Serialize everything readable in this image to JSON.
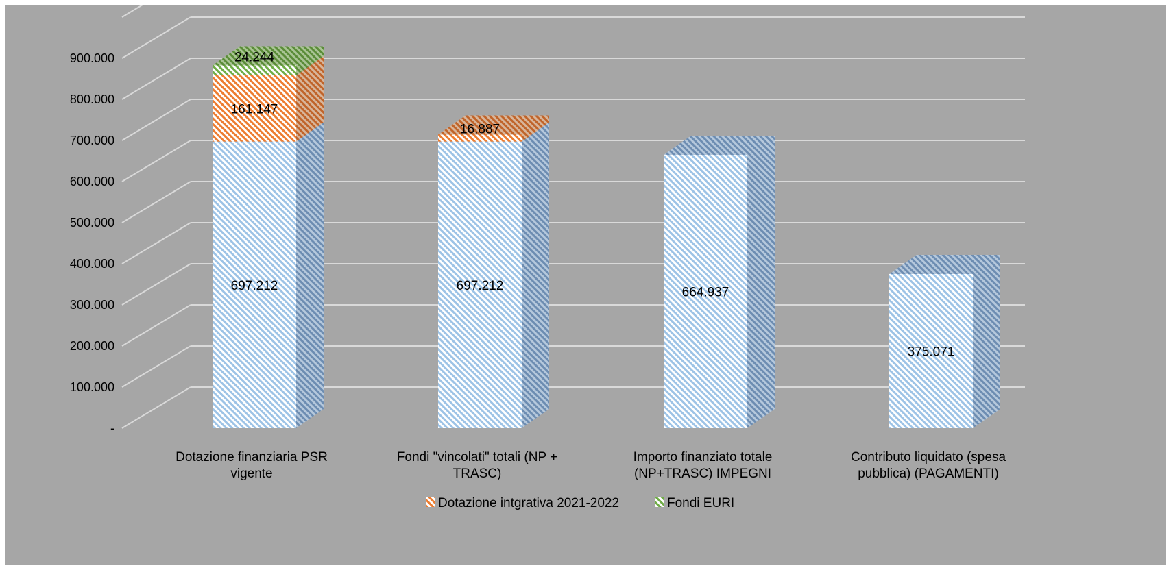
{
  "chart_data": {
    "type": "bar",
    "stacked": true,
    "three_d": true,
    "title": "",
    "xlabel": "",
    "ylabel": "",
    "ylim": [
      0,
      1000000
    ],
    "yticks": [
      0,
      100000,
      200000,
      300000,
      400000,
      500000,
      600000,
      700000,
      800000,
      900000
    ],
    "ytick_labels": [
      "-",
      "100.000",
      "200.000",
      "300.000",
      "400.000",
      "500.000",
      "600.000",
      "700.000",
      "800.000",
      "900.000"
    ],
    "grid": true,
    "legend_position": "bottom",
    "categories": [
      "Dotazione finanziaria PSR vigente",
      "Fondi \"vincolati\" totali (NP + TRASC)",
      "Importo finanziato totale (NP+TRASC) IMPEGNI",
      "Contributo liquidato (spesa pubblica) (PAGAMENTI)"
    ],
    "category_lines": [
      [
        "Dotazione finanziaria PSR",
        "vigente"
      ],
      [
        "Fondi \"vincolati\" totali (NP +",
        "TRASC)"
      ],
      [
        "Importo finanziato totale",
        "(NP+TRASC) IMPEGNI"
      ],
      [
        "Contributo liquidato (spesa",
        "pubblica) (PAGAMENTI)"
      ]
    ],
    "series": [
      {
        "key": "base",
        "values": [
          697212,
          697212,
          664937,
          375071
        ],
        "labels": [
          "697.212",
          "697.212",
          "664.937",
          "375.071"
        ],
        "color": "#9dc3e6",
        "in_legend": false
      },
      {
        "key": "integrativa",
        "name": "Dotazione intgrativa 2021-2022",
        "values": [
          161147,
          16887,
          0,
          0
        ],
        "labels": [
          "161.147",
          "16.887",
          "",
          ""
        ],
        "color": "#ed7d31",
        "in_legend": true
      },
      {
        "key": "euri",
        "name": "Fondi EURI",
        "values": [
          24244,
          0,
          0,
          0
        ],
        "labels": [
          "24.244",
          "",
          "",
          ""
        ],
        "color": "#70ad47",
        "in_legend": true
      }
    ],
    "colors": {
      "background": "#a6a6a6",
      "gridline": "#d9d9d9",
      "text": "#000000"
    }
  }
}
